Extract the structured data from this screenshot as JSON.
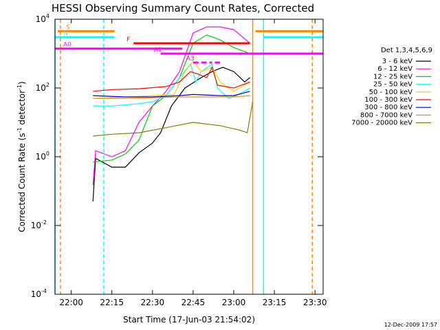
{
  "chart_data": {
    "type": "line",
    "title": "HESSI Observing Summary Count Rates, Corrected",
    "xlabel": "Start Time (17-Jun-03 21:54:02)",
    "ylabel": "Corrected Count Rate (s⁻¹ detector⁻¹)",
    "ylabel_parts": [
      "Corrected Count Rate (s",
      "-1",
      " detector",
      "-1",
      ")"
    ],
    "timestamp": "12-Dec-2009 17:57",
    "x_start": "21:54:02",
    "xlim": [
      "21:54",
      "23:33"
    ],
    "y_scale": "log",
    "ylim": [
      0.0001,
      10000
    ],
    "x_ticks": [
      "22:00",
      "22:15",
      "22:30",
      "22:45",
      "23:00",
      "23:15",
      "23:30"
    ],
    "y_ticks": [
      {
        "base": "10",
        "exp": "4",
        "value": 10000
      },
      {
        "base": "10",
        "exp": "2",
        "value": 100
      },
      {
        "base": "10",
        "exp": "0",
        "value": 1
      },
      {
        "base": "10",
        "exp": "-2",
        "value": 0.01
      },
      {
        "base": "10",
        "exp": "-4",
        "value": 0.0001
      }
    ],
    "legend_title": "Det 1,3,4,5,6,9",
    "legend_position": "right",
    "series": [
      {
        "name": "3 - 6 keV",
        "color": "#000000",
        "points": [
          [
            "22:08",
            0.05
          ],
          [
            "22:09",
            0.9
          ],
          [
            "22:15",
            0.5
          ],
          [
            "22:20",
            0.5
          ],
          [
            "22:25",
            1.3
          ],
          [
            "22:30",
            2.5
          ],
          [
            "22:33",
            5
          ],
          [
            "22:37",
            30
          ],
          [
            "22:42",
            100
          ],
          [
            "22:48",
            200
          ],
          [
            "22:52",
            300
          ],
          [
            "22:56",
            400
          ],
          [
            "23:00",
            300
          ],
          [
            "23:04",
            150
          ],
          [
            "23:06",
            200
          ]
        ]
      },
      {
        "name": "6 - 12 keV",
        "color": "#ff00ff",
        "points": [
          [
            "22:08",
            0.15
          ],
          [
            "22:09",
            1.5
          ],
          [
            "22:15",
            1.0
          ],
          [
            "22:20",
            1.5
          ],
          [
            "22:25",
            10
          ],
          [
            "22:30",
            30
          ],
          [
            "22:35",
            80
          ],
          [
            "22:40",
            300
          ],
          [
            "22:45",
            4000
          ],
          [
            "22:50",
            6000
          ],
          [
            "22:55",
            6000
          ],
          [
            "23:00",
            5000
          ],
          [
            "23:06",
            2000
          ]
        ]
      },
      {
        "name": "12 - 25 keV",
        "color": "#00cc00",
        "points": [
          [
            "22:08",
            0.7
          ],
          [
            "22:15",
            0.8
          ],
          [
            "22:20",
            1.2
          ],
          [
            "22:25",
            3
          ],
          [
            "22:30",
            30
          ],
          [
            "22:35",
            60
          ],
          [
            "22:40",
            200
          ],
          [
            "22:45",
            2000
          ],
          [
            "22:50",
            3500
          ],
          [
            "22:55",
            2500
          ],
          [
            "23:00",
            1500
          ],
          [
            "23:06",
            1000
          ]
        ]
      },
      {
        "name": "25 - 50 keV",
        "color": "#00ffff",
        "points": [
          [
            "22:08",
            30
          ],
          [
            "22:15",
            30
          ],
          [
            "22:25",
            35
          ],
          [
            "22:30",
            40
          ],
          [
            "22:35",
            60
          ],
          [
            "22:40",
            200
          ],
          [
            "22:44",
            500
          ],
          [
            "22:46",
            150
          ],
          [
            "22:48",
            300
          ],
          [
            "22:52",
            500
          ],
          [
            "22:54",
            100
          ],
          [
            "22:58",
            50
          ],
          [
            "23:01",
            60
          ],
          [
            "23:06",
            100
          ]
        ]
      },
      {
        "name": "50 - 100 keV",
        "color": "#ffcc00",
        "points": [
          [
            "22:08",
            50
          ],
          [
            "22:20",
            55
          ],
          [
            "22:30",
            60
          ],
          [
            "22:38",
            65
          ],
          [
            "22:42",
            300
          ],
          [
            "22:45",
            600
          ],
          [
            "22:48",
            300
          ],
          [
            "22:52",
            400
          ],
          [
            "22:55",
            150
          ],
          [
            "23:00",
            80
          ],
          [
            "23:06",
            150
          ]
        ]
      },
      {
        "name": "100 - 300 keV",
        "color": "#ff0000",
        "points": [
          [
            "22:08",
            80
          ],
          [
            "22:15",
            90
          ],
          [
            "22:25",
            95
          ],
          [
            "22:35",
            110
          ],
          [
            "22:40",
            150
          ],
          [
            "22:44",
            300
          ],
          [
            "22:47",
            250
          ],
          [
            "22:50",
            200
          ],
          [
            "22:52",
            400
          ],
          [
            "22:54",
            120
          ],
          [
            "23:00",
            100
          ],
          [
            "23:06",
            150
          ]
        ]
      },
      {
        "name": "300 - 800 keV",
        "color": "#0000cc",
        "points": [
          [
            "22:08",
            60
          ],
          [
            "22:20",
            55
          ],
          [
            "22:30",
            55
          ],
          [
            "22:40",
            60
          ],
          [
            "22:45",
            65
          ],
          [
            "22:55",
            60
          ],
          [
            "23:00",
            60
          ],
          [
            "23:06",
            80
          ]
        ]
      },
      {
        "name": "800 - 7000 keV",
        "color": "#ff8800",
        "points": [
          [
            "22:08",
            50
          ],
          [
            "22:20",
            50
          ],
          [
            "22:30",
            52
          ],
          [
            "22:40",
            55
          ],
          [
            "22:50",
            55
          ],
          [
            "23:00",
            55
          ],
          [
            "23:06",
            60
          ]
        ]
      },
      {
        "name": "7000 - 20000 keV",
        "color": "#808000",
        "points": [
          [
            "22:08",
            4
          ],
          [
            "22:15",
            4.5
          ],
          [
            "22:25",
            5
          ],
          [
            "22:35",
            7
          ],
          [
            "22:45",
            10
          ],
          [
            "22:55",
            8
          ],
          [
            "23:02",
            6
          ],
          [
            "23:05",
            5
          ],
          [
            "23:07",
            40
          ]
        ]
      }
    ],
    "flag_bars": [
      {
        "label": "S",
        "color": "#ff8800",
        "value": 4500,
        "segments": [
          [
            "21:55",
            "22:16"
          ],
          [
            "23:08",
            "23:33"
          ]
        ]
      },
      {
        "label": "N",
        "color": "#00ffff",
        "value": 3000,
        "segments": [
          [
            "21:54",
            "22:16"
          ],
          [
            "23:11",
            "23:33"
          ]
        ]
      },
      {
        "label": "F",
        "color": "#ff0000",
        "value": 2000,
        "segments": [
          [
            "22:23",
            "23:06"
          ]
        ]
      },
      {
        "label": "A0",
        "color": "#ff00ff",
        "value": 1400,
        "segments": [
          [
            "21:54",
            "22:41"
          ]
        ]
      },
      {
        "label": "A1",
        "color": "#ff00ff",
        "value": 1000,
        "segments": [
          [
            "22:33",
            "23:33"
          ]
        ]
      },
      {
        "label": "A3",
        "color": "#ff00ff",
        "value": 550,
        "segments": [
          [
            "22:45",
            "22:47"
          ],
          [
            "22:48",
            "22:50"
          ],
          [
            "22:51",
            "22:52"
          ],
          [
            "22:53",
            "22:55"
          ]
        ]
      }
    ],
    "vertical_markers": [
      {
        "color": "#00ffff",
        "style": "solid",
        "time": "21:54"
      },
      {
        "color": "#ff8800",
        "style": "dashed",
        "time": "21:56"
      },
      {
        "color": "#00ffff",
        "style": "dashed",
        "time": "22:12"
      },
      {
        "color": "#ff8800",
        "style": "solid",
        "time": "23:07"
      },
      {
        "color": "#00ffff",
        "style": "solid",
        "time": "23:11"
      },
      {
        "color": "#ff8800",
        "style": "dashed",
        "time": "23:29"
      }
    ]
  }
}
